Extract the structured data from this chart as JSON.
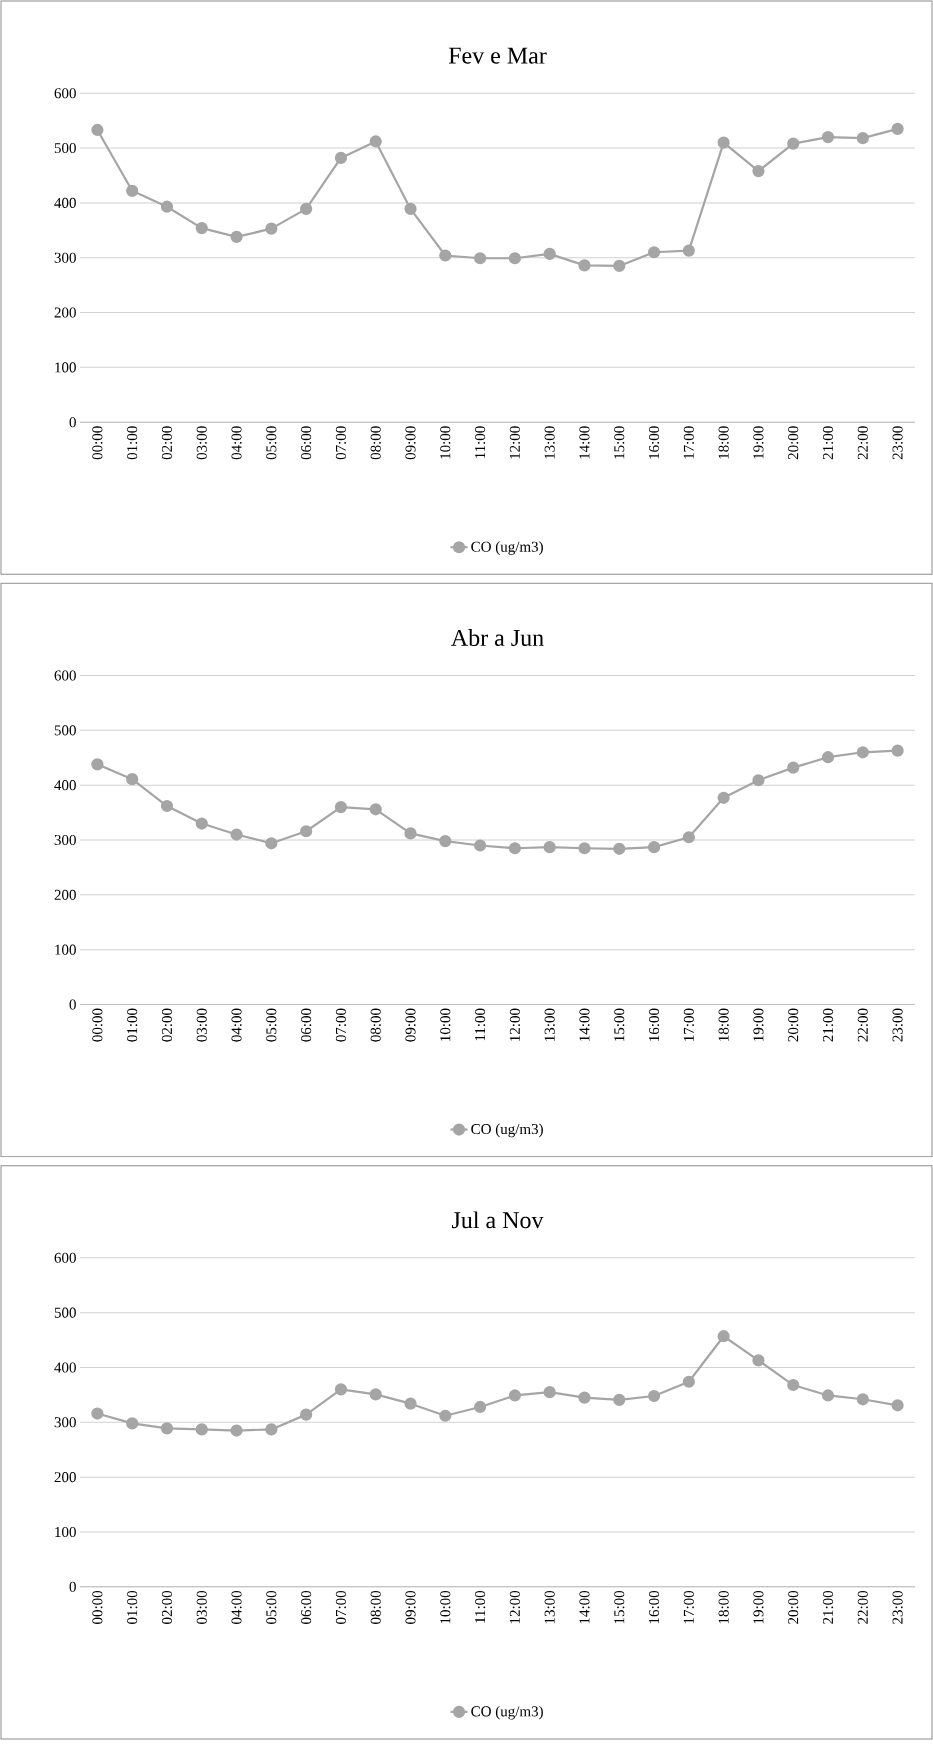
{
  "chart_data": [
    {
      "type": "line",
      "title": "Fev e Mar",
      "categories": [
        "00:00",
        "01:00",
        "02:00",
        "03:00",
        "04:00",
        "05:00",
        "06:00",
        "07:00",
        "08:00",
        "09:00",
        "10:00",
        "11:00",
        "12:00",
        "13:00",
        "14:00",
        "15:00",
        "16:00",
        "17:00",
        "18:00",
        "19:00",
        "20:00",
        "21:00",
        "22:00",
        "23:00"
      ],
      "ylim": [
        0,
        600
      ],
      "yticks": [
        0,
        100,
        200,
        300,
        400,
        500,
        600
      ],
      "grid": "y",
      "legend": "bottom",
      "marker": "circle",
      "series": [
        {
          "name": "CO (ug/m3)",
          "color": "#a5a5a5",
          "values": [
            533,
            422,
            393,
            354,
            338,
            353,
            389,
            482,
            512,
            389,
            304,
            299,
            299,
            307,
            286,
            285,
            310,
            313,
            510,
            458,
            508,
            520,
            518,
            535
          ]
        }
      ]
    },
    {
      "type": "line",
      "title": "Abr a Jun",
      "categories": [
        "00:00",
        "01:00",
        "02:00",
        "03:00",
        "04:00",
        "05:00",
        "06:00",
        "07:00",
        "08:00",
        "09:00",
        "10:00",
        "11:00",
        "12:00",
        "13:00",
        "14:00",
        "15:00",
        "16:00",
        "17:00",
        "18:00",
        "19:00",
        "20:00",
        "21:00",
        "22:00",
        "23:00"
      ],
      "ylim": [
        0,
        600
      ],
      "yticks": [
        0,
        100,
        200,
        300,
        400,
        500,
        600
      ],
      "grid": "y",
      "legend": "bottom",
      "marker": "circle",
      "series": [
        {
          "name": "CO (ug/m3)",
          "color": "#a5a5a5",
          "values": [
            438,
            411,
            362,
            330,
            310,
            294,
            316,
            360,
            356,
            312,
            298,
            290,
            285,
            287,
            285,
            284,
            287,
            305,
            377,
            409,
            432,
            451,
            460,
            463
          ]
        }
      ]
    },
    {
      "type": "line",
      "title": "Jul a Nov",
      "categories": [
        "00:00",
        "01:00",
        "02:00",
        "03:00",
        "04:00",
        "05:00",
        "06:00",
        "07:00",
        "08:00",
        "09:00",
        "10:00",
        "11:00",
        "12:00",
        "13:00",
        "14:00",
        "15:00",
        "16:00",
        "17:00",
        "18:00",
        "19:00",
        "20:00",
        "21:00",
        "22:00",
        "23:00"
      ],
      "ylim": [
        0,
        600
      ],
      "yticks": [
        0,
        100,
        200,
        300,
        400,
        500,
        600
      ],
      "grid": "y",
      "legend": "bottom",
      "marker": "circle",
      "series": [
        {
          "name": "CO (ug/m3)",
          "color": "#a5a5a5",
          "values": [
            316,
            298,
            289,
            287,
            285,
            287,
            314,
            360,
            351,
            334,
            312,
            328,
            349,
            355,
            345,
            341,
            348,
            374,
            457,
            413,
            368,
            349,
            342,
            331
          ]
        }
      ]
    }
  ]
}
